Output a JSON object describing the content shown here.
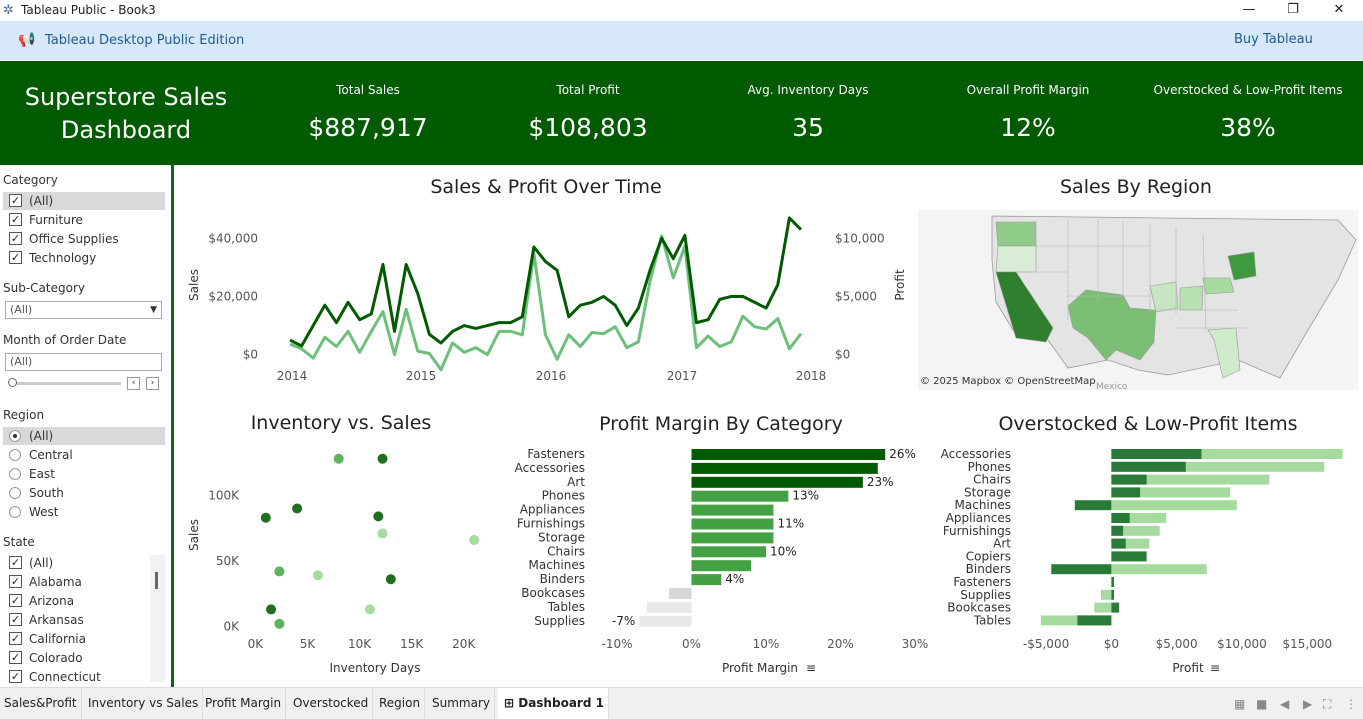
{
  "window": {
    "title": "Tableau Public - Book3",
    "minimize": "—",
    "restore": "❐",
    "close": "✕"
  },
  "banner": {
    "edition": "Tableau Desktop Public Edition",
    "buy": "Buy Tableau"
  },
  "header": {
    "title_line1": "Superstore Sales",
    "title_line2": "Dashboard",
    "kpis": [
      {
        "label": "Total Sales",
        "value": "$887,917"
      },
      {
        "label": "Total Profit",
        "value": "$108,803"
      },
      {
        "label": "Avg. Inventory Days",
        "value": "35"
      },
      {
        "label": "Overall Profit Margin",
        "value": "12%"
      },
      {
        "label": "Overstocked & Low-Profit Items",
        "value": "38%"
      }
    ]
  },
  "filters": {
    "category": {
      "title": "Category",
      "items": [
        "(All)",
        "Furniture",
        "Office Supplies",
        "Technology"
      ]
    },
    "subcategory": {
      "title": "Sub-Category",
      "value": "(All)"
    },
    "month": {
      "title": "Month of Order Date",
      "value": "(All)"
    },
    "region": {
      "title": "Region",
      "items": [
        "(All)",
        "Central",
        "East",
        "South",
        "West"
      ]
    },
    "state": {
      "title": "State",
      "items": [
        "(All)",
        "Alabama",
        "Arizona",
        "Arkansas",
        "California",
        "Colorado",
        "Connecticut"
      ]
    }
  },
  "panels": {
    "sales_profit_title": "Sales & Profit Over Time",
    "region_title": "Sales By Region",
    "inventory_title": "Inventory vs. Sales",
    "margin_title": "Profit Margin By Category",
    "overstock_title": "Overstocked & Low-Profit Items",
    "map_credit": "© 2025 Mapbox © OpenStreetMap",
    "map_label": "Mexico"
  },
  "colors": {
    "dark_green": "#005a00",
    "mid_green": "#3b9a3b",
    "light_green": "#a6dba0",
    "pale": "#e8e8e8"
  },
  "chart_data": [
    {
      "type": "line",
      "title": "Sales & Profit Over Time",
      "xlabel": "",
      "ylabel": "Sales",
      "y2label": "Profit",
      "x_ticks": [
        "2014",
        "2015",
        "2016",
        "2017",
        "2018"
      ],
      "y_ticks": [
        "$0",
        "$20,000",
        "$40,000"
      ],
      "y2_ticks": [
        "$0",
        "$5,000",
        "$10,000"
      ],
      "ylim": [
        -7000,
        48000
      ],
      "y2lim": [
        -1750,
        12000
      ],
      "series": [
        {
          "name": "Sales",
          "values": [
            5000,
            3000,
            10000,
            17000,
            11000,
            18000,
            12000,
            14000,
            31000,
            8000,
            31000,
            21000,
            7000,
            4000,
            8000,
            10000,
            9000,
            10000,
            11000,
            11000,
            13000,
            37000,
            32000,
            29000,
            13000,
            17000,
            18000,
            20000,
            17000,
            10000,
            16000,
            29000,
            40000,
            33000,
            41000,
            11000,
            12000,
            19000,
            20000,
            20000,
            18000,
            16000,
            24000,
            47000,
            43000
          ]
        },
        {
          "name": "Profit",
          "values": [
            900,
            500,
            -300,
            1500,
            700,
            2000,
            200,
            2000,
            3700,
            0,
            3900,
            300,
            100,
            -1300,
            1000,
            200,
            600,
            0,
            2000,
            2000,
            1700,
            8700,
            1700,
            -400,
            1700,
            700,
            1900,
            1800,
            2400,
            600,
            1100,
            6300,
            10200,
            6600,
            9300,
            600,
            1600,
            700,
            1100,
            3300,
            2400,
            2200,
            3100,
            500,
            1800
          ]
        }
      ]
    },
    {
      "type": "scatter",
      "title": "Inventory vs. Sales",
      "xlabel": "Inventory Days",
      "ylabel": "Sales",
      "x_ticks": [
        "0K",
        "5K",
        "10K",
        "15K",
        "20K"
      ],
      "y_ticks": [
        "0K",
        "50K",
        "100K"
      ],
      "xlim": [
        -1000,
        23000
      ],
      "ylim": [
        -5000,
        140000
      ],
      "points": [
        {
          "x": 8000,
          "y": 128000,
          "shade": "mid"
        },
        {
          "x": 12200,
          "y": 128000,
          "shade": "dark"
        },
        {
          "x": 1000,
          "y": 83000,
          "shade": "dark"
        },
        {
          "x": 4000,
          "y": 90000,
          "shade": "dark"
        },
        {
          "x": 11800,
          "y": 84000,
          "shade": "dark"
        },
        {
          "x": 12200,
          "y": 71000,
          "shade": "light"
        },
        {
          "x": 21000,
          "y": 66000,
          "shade": "light"
        },
        {
          "x": 2300,
          "y": 42000,
          "shade": "mid"
        },
        {
          "x": 6000,
          "y": 39000,
          "shade": "light"
        },
        {
          "x": 13000,
          "y": 36000,
          "shade": "dark"
        },
        {
          "x": 1500,
          "y": 13000,
          "shade": "dark"
        },
        {
          "x": 2300,
          "y": 2000,
          "shade": "mid"
        },
        {
          "x": 11000,
          "y": 13000,
          "shade": "light"
        }
      ]
    },
    {
      "type": "bar",
      "title": "Profit Margin By Category",
      "xlabel": "Profit Margin",
      "x_ticks": [
        "-10%",
        "0%",
        "10%",
        "20%",
        "30%"
      ],
      "xlim": [
        -10,
        30
      ],
      "categories": [
        "Fasteners",
        "Accessories",
        "Art",
        "Phones",
        "Appliances",
        "Furnishings",
        "Storage",
        "Chairs",
        "Machines",
        "Binders",
        "Bookcases",
        "Tables",
        "Supplies"
      ],
      "values": [
        26,
        25,
        23,
        13,
        11,
        11,
        11,
        10,
        8,
        4,
        -3,
        -6,
        -7
      ],
      "labels": [
        "26%",
        "",
        "23%",
        "13%",
        "",
        "11%",
        "",
        "10%",
        "",
        "4%",
        "",
        "",
        "-7%"
      ]
    },
    {
      "type": "bar",
      "title": "Overstocked & Low-Profit Items",
      "xlabel": "Profit",
      "x_ticks": [
        "-$5,000",
        "$0",
        "$5,000",
        "$10,000",
        "$15,000"
      ],
      "xlim": [
        -6000,
        18500
      ],
      "categories": [
        "Accessories",
        "Phones",
        "Chairs",
        "Storage",
        "Machines",
        "Appliances",
        "Furnishings",
        "Art",
        "Copiers",
        "Binders",
        "Fasteners",
        "Supplies",
        "Bookcases",
        "Tables"
      ],
      "series": [
        {
          "name": "Overstocked",
          "values": [
            17700,
            16300,
            12100,
            9100,
            9600,
            4200,
            3700,
            2900,
            0,
            7300,
            0,
            -800,
            -1300,
            -5400
          ]
        },
        {
          "name": "Low-Profit",
          "values": [
            6900,
            5700,
            2700,
            2200,
            -2800,
            1400,
            900,
            1100,
            2700,
            -4600,
            200,
            200,
            600,
            -2600
          ]
        }
      ]
    }
  ],
  "tabs": [
    "Sales&Profit",
    "Inventory vs Sales",
    "Profit Margin",
    "Overstocked",
    "Region",
    "Summary",
    "Dashboard 1"
  ]
}
